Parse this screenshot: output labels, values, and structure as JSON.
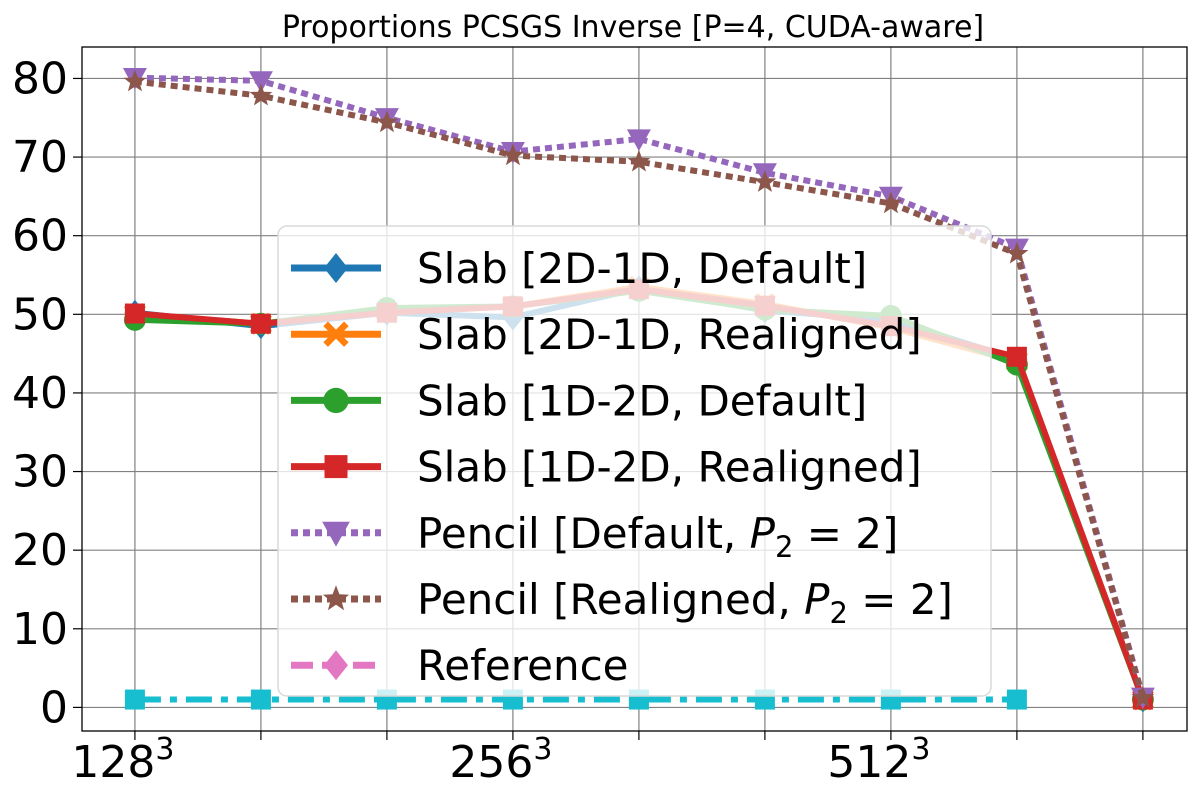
{
  "chart_data": {
    "type": "line",
    "title": "Proportions PCSGS Inverse [P=4, CUDA-aware]",
    "xlabel": "",
    "ylabel": "",
    "x": [
      0,
      1,
      2,
      3,
      4,
      5,
      6,
      7,
      8
    ],
    "xticks": [
      {
        "x": 0,
        "base": "128",
        "exp": "3"
      },
      {
        "x": 3,
        "base": "256",
        "exp": "3"
      },
      {
        "x": 6,
        "base": "512",
        "exp": "3"
      }
    ],
    "xminor": [
      1,
      2,
      4,
      5,
      7,
      8
    ],
    "yticks": [
      "0",
      "10",
      "20",
      "30",
      "40",
      "50",
      "60",
      "70",
      "80"
    ],
    "xlim": [
      -0.42,
      8.35
    ],
    "ylim": [
      -3,
      84
    ],
    "grid": true,
    "legend_position": "center",
    "series": [
      {
        "name": "Slab [2D-1D, Default]",
        "color": "#1f77b4",
        "dash": "solid",
        "marker": "diamond",
        "values": [
          50.2,
          48.5,
          50.2,
          49.6,
          53.3,
          50.5,
          49.3,
          44.3,
          1.0
        ]
      },
      {
        "name": "Slab [2D-1D, Realigned]",
        "color": "#ff7f0e",
        "dash": "solid",
        "marker": "xfat",
        "values": [
          50.0,
          48.8,
          50.4,
          51.0,
          53.5,
          51.3,
          48.3,
          44.0,
          1.0
        ]
      },
      {
        "name": "Slab [1D-2D, Default]",
        "color": "#2ca02c",
        "dash": "solid",
        "marker": "circle",
        "values": [
          49.3,
          48.8,
          50.8,
          51.0,
          53.0,
          50.6,
          49.8,
          43.6,
          1.0
        ]
      },
      {
        "name": "Slab [1D-2D, Realigned]",
        "color": "#d62728",
        "dash": "solid",
        "marker": "square",
        "values": [
          50.1,
          48.8,
          50.2,
          51.0,
          53.2,
          51.1,
          48.5,
          44.6,
          1.0
        ]
      },
      {
        "name": "Pencil [Default, P₂ = 2]",
        "label_parts": [
          "Pencil [Default, ",
          "P",
          "2",
          " = 2]"
        ],
        "color": "#9467bd",
        "dash": "dotted",
        "marker": "triangle_down",
        "values": [
          80.1,
          79.7,
          75.0,
          70.7,
          72.3,
          68.0,
          65.0,
          58.4,
          1.3
        ]
      },
      {
        "name": "Pencil [Realigned, P₂ = 2]",
        "label_parts": [
          "Pencil [Realigned, ",
          "P",
          "2",
          " = 2]"
        ],
        "color": "#8c564b",
        "dash": "dotted",
        "marker": "star",
        "values": [
          79.6,
          77.8,
          74.4,
          70.2,
          69.4,
          66.8,
          64.1,
          57.7,
          1.2
        ]
      },
      {
        "name": "Reference",
        "color": "#e377c2",
        "dash": "dashed",
        "marker": "diamond",
        "values": [
          null,
          null,
          null,
          null,
          null,
          null,
          null,
          null,
          null
        ]
      },
      {
        "name": "",
        "color": "#17becf",
        "dash": "dashdot",
        "marker": "square",
        "in_legend": false,
        "values": [
          1.0,
          1.0,
          1.0,
          1.0,
          1.0,
          1.0,
          1.0,
          1.0,
          null
        ]
      }
    ]
  }
}
